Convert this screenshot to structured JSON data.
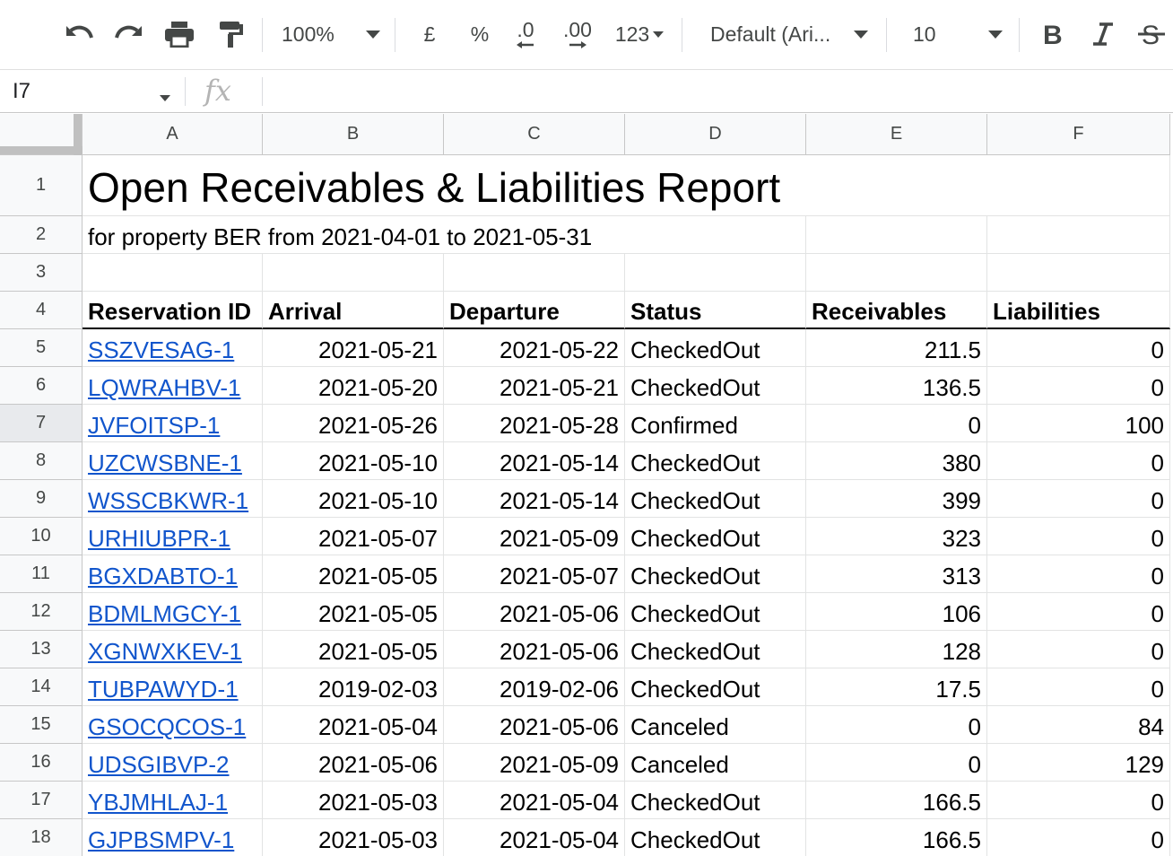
{
  "toolbar": {
    "zoom": "100%",
    "currency": "£",
    "percent": "%",
    "decrease_decimals": ".0",
    "increase_decimals": ".00",
    "number_format": "123",
    "font": "Default (Ari...",
    "font_size": "10"
  },
  "formula_bar": {
    "name_box": "I7",
    "fx": "fx",
    "value": ""
  },
  "columns": [
    "A",
    "B",
    "C",
    "D",
    "E",
    "F"
  ],
  "rows": [
    "1",
    "2",
    "3",
    "4",
    "5",
    "6",
    "7",
    "8",
    "9",
    "10",
    "11",
    "12",
    "13",
    "14",
    "15",
    "16",
    "17",
    "18"
  ],
  "selected_row": "7",
  "report": {
    "title": "Open Receivables & Liabilities Report",
    "subtitle": "for property BER from 2021-04-01 to 2021-05-31"
  },
  "table": {
    "headers": [
      "Reservation ID",
      "Arrival",
      "Departure",
      "Status",
      "Receivables",
      "Liabilities"
    ],
    "rows": [
      [
        "SSZVESAG-1",
        "2021-05-21",
        "2021-05-22",
        "CheckedOut",
        "211.5",
        "0"
      ],
      [
        "LQWRAHBV-1",
        "2021-05-20",
        "2021-05-21",
        "CheckedOut",
        "136.5",
        "0"
      ],
      [
        "JVFOITSP-1",
        "2021-05-26",
        "2021-05-28",
        "Confirmed",
        "0",
        "100"
      ],
      [
        "UZCWSBNE-1",
        "2021-05-10",
        "2021-05-14",
        "CheckedOut",
        "380",
        "0"
      ],
      [
        "WSSCBKWR-1",
        "2021-05-10",
        "2021-05-14",
        "CheckedOut",
        "399",
        "0"
      ],
      [
        "URHIUBPR-1",
        "2021-05-07",
        "2021-05-09",
        "CheckedOut",
        "323",
        "0"
      ],
      [
        "BGXDABTO-1",
        "2021-05-05",
        "2021-05-07",
        "CheckedOut",
        "313",
        "0"
      ],
      [
        "BDMLMGCY-1",
        "2021-05-05",
        "2021-05-06",
        "CheckedOut",
        "106",
        "0"
      ],
      [
        "XGNWXKEV-1",
        "2021-05-05",
        "2021-05-06",
        "CheckedOut",
        "128",
        "0"
      ],
      [
        "TUBPAWYD-1",
        "2019-02-03",
        "2019-02-06",
        "CheckedOut",
        "17.5",
        "0"
      ],
      [
        "GSOCQCOS-1",
        "2021-05-04",
        "2021-05-06",
        "Canceled",
        "0",
        "84"
      ],
      [
        "UDSGIBVP-2",
        "2021-05-06",
        "2021-05-09",
        "Canceled",
        "0",
        "129"
      ],
      [
        "YBJMHLAJ-1",
        "2021-05-03",
        "2021-05-04",
        "CheckedOut",
        "166.5",
        "0"
      ],
      [
        "GJPBSMPV-1",
        "2021-05-03",
        "2021-05-04",
        "CheckedOut",
        "166.5",
        "0"
      ]
    ]
  },
  "colors": {
    "link": "#1155cc",
    "header_bg": "#f8f9fa",
    "grid_line": "#e2e3e3"
  }
}
